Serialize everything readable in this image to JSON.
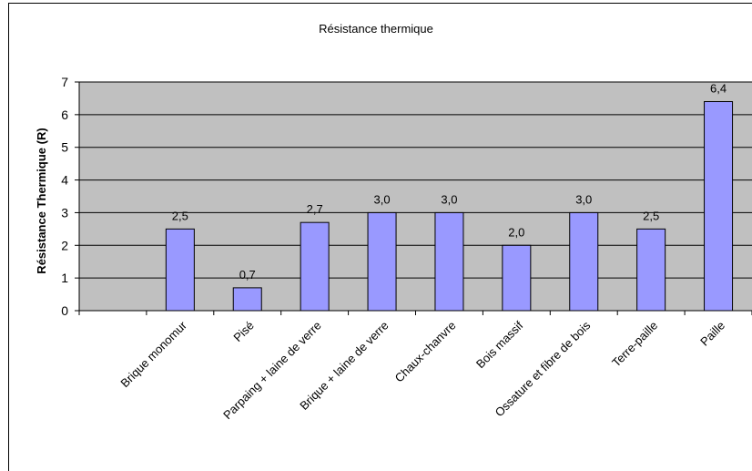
{
  "chart_data": {
    "type": "bar",
    "title": "Résistance thermique",
    "xlabel": "",
    "ylabel": "Résistance Thermique (R)",
    "ylim": [
      0,
      7
    ],
    "yticks": [
      "0",
      "1",
      "2",
      "3",
      "4",
      "5",
      "6",
      "7"
    ],
    "grid": true,
    "categories": [
      "",
      "Brique monomur",
      "Pisé",
      "Parpaing + laine de verre",
      "Brique + laine de verre",
      "Chaux-chanvre",
      "Bois massif",
      "Ossature et fibre de bois",
      "Terre-paille",
      "Paille"
    ],
    "values": [
      null,
      2.5,
      0.7,
      2.7,
      3.0,
      3.0,
      2.0,
      3.0,
      2.5,
      6.4
    ],
    "data_labels": [
      "",
      "2,5",
      "0,7",
      "2,7",
      "3,0",
      "3,0",
      "2,0",
      "3,0",
      "2,5",
      "6,4"
    ],
    "colors": {
      "plot_bg": "#c0c0c0",
      "bar": "#9999ff",
      "bar_edge": "#000000",
      "grid": "#000000"
    }
  }
}
